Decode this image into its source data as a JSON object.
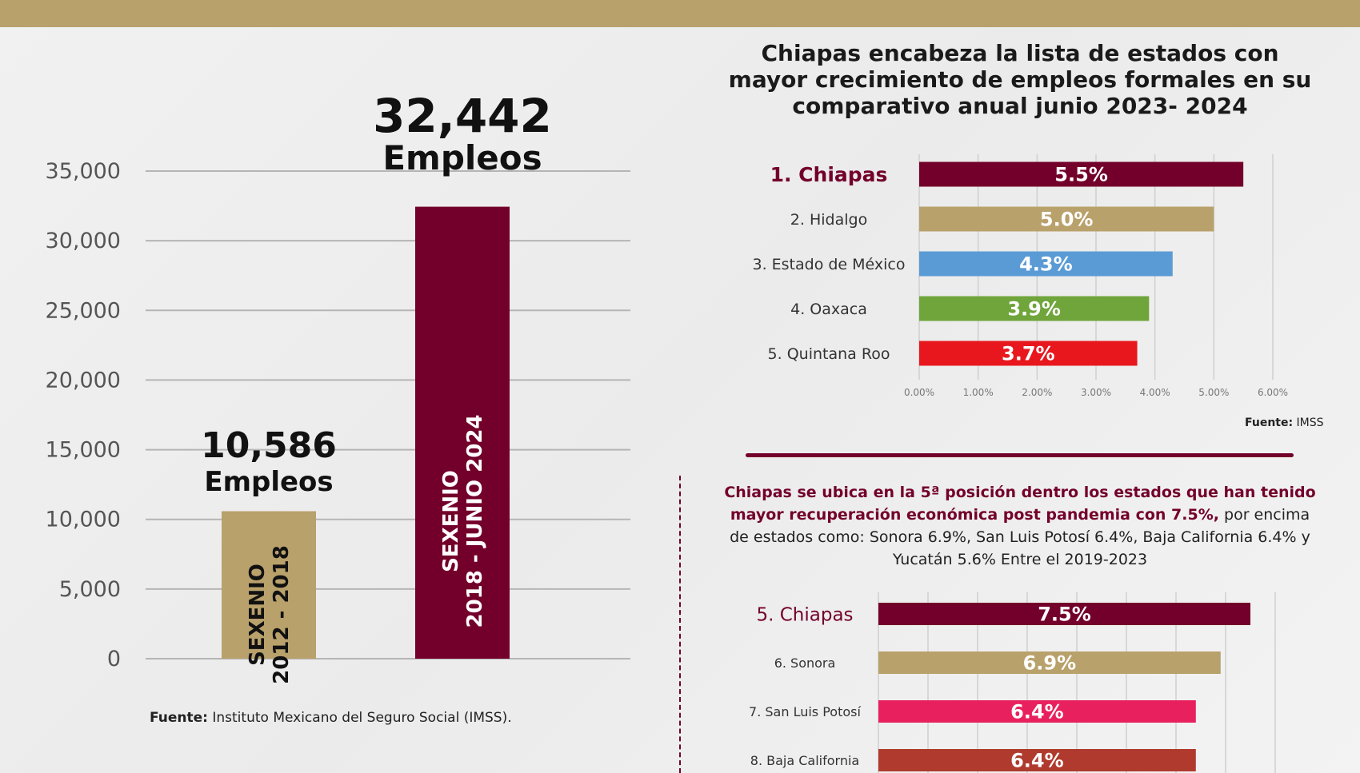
{
  "chart_data": [
    {
      "type": "bar",
      "categories": [
        "SEXENIO 2012 - 2018",
        "SEXENIO 2018 - JUNIO 2024"
      ],
      "bar_labels": [
        [
          "SEXENIO",
          "2012 - 2018"
        ],
        [
          "SEXENIO",
          "2018 - JUNIO 2024"
        ]
      ],
      "values": [
        10586,
        32442
      ],
      "value_labels": [
        "10,586",
        "32,442"
      ],
      "unit_label": "Empleos",
      "colors": [
        "#b9a16b",
        "#73002a"
      ],
      "yticks": [
        0,
        5000,
        10000,
        15000,
        20000,
        25000,
        30000,
        35000
      ],
      "ytick_labels": [
        "0",
        "5,000",
        "10,000",
        "15,000",
        "20,000",
        "25,000",
        "30,000",
        "35,000"
      ],
      "ylim": [
        0,
        35000
      ],
      "grid": true,
      "source_bold": "Fuente:",
      "source_text": "Instituto Mexicano del Seguro Social (IMSS)."
    },
    {
      "type": "bar",
      "orientation": "horizontal",
      "title": "Chiapas encabeza la lista de estados con mayor crecimiento de empleos formales en su comparativo anual junio 2023- 2024",
      "categories": [
        "1. Chiapas",
        "2. Hidalgo",
        "3. Estado de México",
        "4. Oaxaca",
        "5. Quintana Roo"
      ],
      "values": [
        5.5,
        5.0,
        4.3,
        3.9,
        3.7
      ],
      "value_labels": [
        "5.5%",
        "5.0%",
        "4.3%",
        "3.9%",
        "3.7%"
      ],
      "colors": [
        "#73002a",
        "#b9a16b",
        "#5b9bd5",
        "#6fa53b",
        "#e8171d"
      ],
      "highlight_index": 0,
      "xlim": [
        0,
        6
      ],
      "xticks": [
        0,
        1,
        2,
        3,
        4,
        5,
        6
      ],
      "xtick_labels": [
        "0.00%",
        "1.00%",
        "2.00%",
        "3.00%",
        "4.00%",
        "5.00%",
        "6.00%"
      ],
      "grid": true,
      "source_bold": "Fuente:",
      "source_text": "IMSS"
    },
    {
      "type": "bar",
      "orientation": "horizontal",
      "note_bold": "Chiapas se ubica en la 5ª posición dentro los estados que han tenido mayor recuperación económica post pandemia con 7.5%,",
      "note_text": "por encima de estados como: Sonora 6.9%, San Luis Potosí 6.4%, Baja California 6.4% y Yucatán 5.6% Entre el 2019-2023",
      "categories": [
        "5. Chiapas",
        "6. Sonora",
        "7. San Luis Potosí",
        "8. Baja California"
      ],
      "values": [
        7.5,
        6.9,
        6.4,
        6.4
      ],
      "value_labels": [
        "7.5%",
        "6.9%",
        "6.4%",
        "6.4%"
      ],
      "colors": [
        "#73002a",
        "#b9a16b",
        "#e8215e",
        "#b03a2e"
      ],
      "highlight_index": 0,
      "xlim": [
        0,
        8
      ],
      "grid": true
    }
  ],
  "colors": {
    "guinda": "#73002a",
    "dorado": "#b9a16b"
  }
}
